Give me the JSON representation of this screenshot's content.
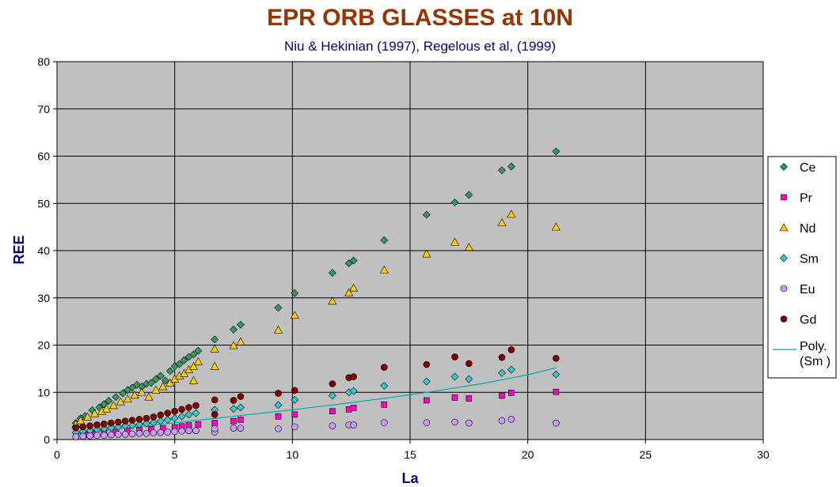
{
  "colors": {
    "title": "#993300",
    "subtitle": "#000080",
    "axis_label": "#000080",
    "plot_bg": "#c0c0c0",
    "grid": "#000000",
    "Ce": "#339966",
    "Pr": "#ff00cc",
    "Nd": "#ffcc00",
    "Sm": "#33cccc",
    "Eu": "#cc99ff",
    "Gd": "#800000",
    "poly": "#00aaaa"
  },
  "chart_data": {
    "type": "scatter",
    "title": "EPR  ORB GLASSES at 10N",
    "subtitle": "Niu & Hekinian (1997), Regelous et al, (1999)",
    "xlabel": "La",
    "ylabel": "REE",
    "xlim": [
      0,
      30
    ],
    "ylim": [
      0,
      80
    ],
    "xticks": [
      0,
      5,
      10,
      15,
      20,
      25,
      30
    ],
    "yticks": [
      0,
      10,
      20,
      30,
      40,
      50,
      60,
      70,
      80
    ],
    "grid": true,
    "legend_position": "right",
    "series": [
      {
        "name": "Ce",
        "marker": "diamond",
        "x": [
          0.8,
          1.0,
          1.2,
          1.5,
          1.8,
          2.0,
          2.2,
          2.5,
          2.8,
          3.0,
          3.2,
          3.4,
          3.6,
          3.8,
          4.0,
          4.2,
          4.4,
          4.6,
          4.8,
          5.0,
          5.2,
          5.4,
          5.6,
          5.8,
          6.0,
          6.7,
          7.5,
          7.8,
          9.4,
          10.1,
          11.7,
          12.4,
          12.6,
          13.9,
          15.7,
          16.9,
          17.5,
          18.9,
          19.3,
          21.2
        ],
        "y": [
          3.5,
          4.5,
          5.0,
          6.2,
          6.8,
          7.5,
          8.2,
          9.0,
          9.8,
          10.5,
          11.0,
          11.6,
          11.2,
          11.8,
          12.0,
          12.8,
          13.5,
          12.5,
          14.5,
          15.5,
          16.0,
          16.8,
          17.5,
          18.0,
          18.8,
          21.2,
          23.3,
          24.3,
          27.9,
          31.0,
          35.3,
          37.3,
          37.9,
          42.2,
          47.6,
          50.2,
          51.8,
          57.0,
          57.8,
          61.0
        ]
      },
      {
        "name": "Pr",
        "marker": "square",
        "x": [
          0.8,
          1.2,
          1.6,
          2.0,
          2.5,
          3.0,
          3.5,
          4.0,
          4.5,
          5.0,
          5.3,
          5.6,
          6.0,
          6.7,
          7.5,
          7.8,
          9.4,
          10.1,
          11.7,
          12.4,
          12.6,
          13.9,
          15.7,
          16.9,
          17.5,
          18.9,
          19.3,
          21.2
        ],
        "y": [
          0.8,
          1.0,
          1.2,
          1.4,
          1.6,
          1.8,
          2.0,
          2.2,
          2.4,
          2.6,
          2.8,
          3.0,
          3.2,
          3.5,
          3.9,
          4.2,
          4.9,
          5.3,
          6.0,
          6.4,
          6.7,
          7.4,
          8.3,
          8.9,
          8.7,
          9.3,
          9.9,
          10.1
        ]
      },
      {
        "name": "Nd",
        "marker": "triangle",
        "x": [
          0.8,
          1.0,
          1.3,
          1.6,
          1.9,
          2.1,
          2.4,
          2.7,
          3.0,
          3.3,
          3.6,
          3.9,
          4.2,
          4.5,
          4.8,
          5.0,
          5.2,
          5.4,
          5.6,
          5.8,
          6.0,
          5.8,
          6.7,
          6.7,
          7.5,
          7.8,
          9.4,
          10.1,
          11.7,
          12.4,
          12.6,
          13.9,
          15.7,
          16.9,
          17.5,
          18.9,
          19.3,
          21.2
        ],
        "y": [
          3.2,
          4.0,
          4.8,
          5.5,
          6.0,
          6.5,
          7.2,
          8.0,
          8.6,
          9.4,
          10.0,
          9.0,
          10.5,
          11.2,
          12.0,
          12.8,
          13.5,
          14.0,
          14.8,
          15.5,
          16.5,
          12.5,
          15.5,
          19.2,
          19.9,
          20.7,
          23.2,
          26.3,
          29.3,
          31.1,
          32.1,
          35.9,
          39.3,
          41.8,
          40.7,
          45.9,
          47.7,
          45.0
        ]
      },
      {
        "name": "Sm",
        "marker": "diamond",
        "x": [
          0.8,
          1.1,
          1.4,
          1.7,
          2.0,
          2.3,
          2.6,
          2.9,
          3.2,
          3.5,
          3.8,
          4.1,
          4.4,
          4.7,
          5.0,
          5.3,
          5.6,
          5.9,
          6.7,
          7.5,
          7.8,
          9.4,
          10.1,
          11.7,
          12.4,
          12.6,
          13.9,
          15.7,
          16.9,
          17.5,
          18.9,
          19.3,
          21.2
        ],
        "y": [
          1.5,
          1.7,
          1.9,
          2.1,
          2.3,
          2.5,
          2.7,
          2.9,
          3.0,
          3.2,
          3.4,
          3.6,
          3.9,
          4.2,
          4.5,
          4.9,
          5.3,
          5.6,
          6.3,
          6.5,
          6.8,
          7.3,
          8.4,
          9.3,
          10.0,
          10.3,
          11.4,
          12.3,
          13.3,
          12.8,
          14.1,
          14.8,
          13.8
        ]
      },
      {
        "name": "Eu",
        "marker": "circle",
        "x": [
          0.8,
          1.1,
          1.4,
          1.7,
          2.0,
          2.3,
          2.6,
          2.9,
          3.2,
          3.5,
          3.8,
          4.1,
          4.4,
          4.7,
          5.0,
          5.3,
          5.6,
          5.9,
          6.7,
          6.7,
          7.5,
          7.8,
          9.4,
          10.1,
          11.7,
          12.4,
          12.6,
          13.9,
          15.7,
          16.9,
          17.5,
          18.9,
          19.3,
          21.2
        ],
        "y": [
          0.6,
          0.7,
          0.8,
          0.9,
          0.9,
          1.0,
          1.1,
          1.1,
          1.2,
          1.3,
          1.3,
          1.4,
          1.5,
          1.6,
          1.7,
          1.8,
          1.9,
          1.9,
          1.6,
          2.3,
          2.4,
          2.4,
          2.3,
          2.7,
          2.9,
          3.1,
          3.1,
          3.6,
          3.6,
          3.7,
          3.5,
          4.0,
          4.3,
          3.5
        ]
      },
      {
        "name": "Gd",
        "marker": "circle",
        "x": [
          0.8,
          1.1,
          1.4,
          1.7,
          2.0,
          2.3,
          2.6,
          2.9,
          3.2,
          3.5,
          3.8,
          4.1,
          4.4,
          4.7,
          5.0,
          5.3,
          5.6,
          5.9,
          6.7,
          6.7,
          7.5,
          7.8,
          9.4,
          10.1,
          11.7,
          12.4,
          12.6,
          13.9,
          15.7,
          16.9,
          17.5,
          18.9,
          19.3,
          21.2
        ],
        "y": [
          2.5,
          2.7,
          2.9,
          3.1,
          3.3,
          3.5,
          3.7,
          3.9,
          4.1,
          4.3,
          4.5,
          4.8,
          5.2,
          5.6,
          6.0,
          6.4,
          6.8,
          7.2,
          5.3,
          8.4,
          8.3,
          9.1,
          9.8,
          10.4,
          11.8,
          13.1,
          13.3,
          15.3,
          15.9,
          17.5,
          16.1,
          17.4,
          19.0,
          17.2
        ]
      }
    ],
    "trendline": {
      "name": "Poly. (Sm )",
      "type": "polynomial",
      "series": "Sm",
      "x": [
        0.8,
        2,
        4,
        6,
        8,
        10,
        12,
        14,
        16,
        18,
        20,
        21.2
      ],
      "y": [
        1.2,
        1.9,
        3.0,
        4.1,
        5.2,
        6.3,
        7.5,
        8.8,
        10.2,
        11.8,
        13.7,
        15.2
      ]
    },
    "legend": [
      "Ce",
      "Pr",
      "Nd",
      "Sm",
      "Eu",
      "Gd",
      "Poly.",
      "(Sm )"
    ]
  }
}
